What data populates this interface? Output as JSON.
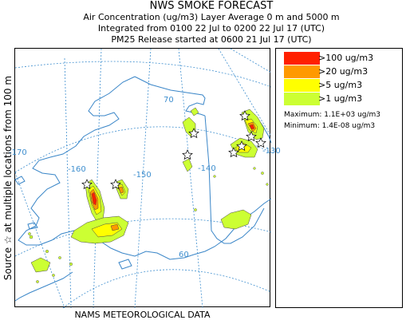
{
  "header": {
    "title": "NWS SMOKE FORECAST",
    "line2": "Air Concentration (ug/m3) Layer Average    0 m and  5000 m",
    "line3": "Integrated from 0100 22 Jul to 0200 22 Jul 17 (UTC)",
    "line4": "PM25 Release started at 0600 21 Jul 17 (UTC)"
  },
  "side_label": "Source ☆  at multiple locations     from   100 m",
  "bottom_label": "NAMS METEOROLOGICAL DATA",
  "legend": {
    "items": [
      {
        "label": ">100 ug/m3",
        "color": "#ff2000"
      },
      {
        "label": ">20 ug/m3",
        "color": "#ff9900"
      },
      {
        "label": ">5 ug/m3",
        "color": "#ffff00"
      },
      {
        "label": ">1 ug/m3",
        "color": "#ccff33"
      }
    ],
    "maximum": "Maximum:  1.1E+03 ug/m3",
    "minimum": "Minimum:  1.4E-08 ug/m3"
  },
  "map": {
    "lon_labels": [
      "-170",
      "-160",
      "-150",
      "-140"
    ],
    "lat_labels": [
      "70",
      "60"
    ],
    "lon_right": "-130",
    "colors": {
      "grid": "#3f8fcf",
      "coast": "#3a86c8",
      "border": "#3a86c8"
    }
  }
}
